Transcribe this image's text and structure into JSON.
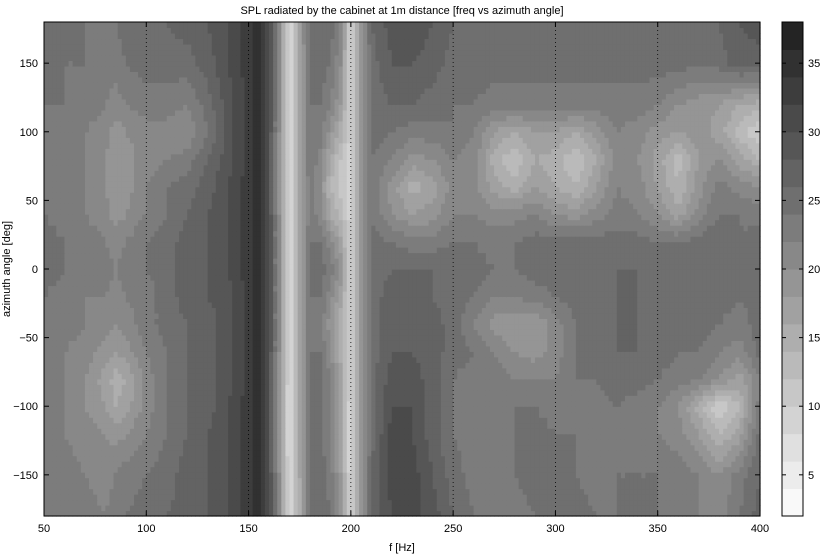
{
  "chart_data": {
    "type": "heatmap",
    "title": "SPL radiated by the cabinet at 1m distance [freq vs azimuth angle]",
    "xlabel": "f [Hz]",
    "ylabel": "azimuth angle [deg]",
    "xlim": [
      50,
      400
    ],
    "ylim": [
      -180,
      180
    ],
    "xticks": [
      "50",
      "100",
      "150",
      "200",
      "250",
      "300",
      "350",
      "400"
    ],
    "yticks": [
      "-150",
      "-100",
      "-50",
      "0",
      "50",
      "100",
      "150"
    ],
    "colorbar": {
      "range": [
        2,
        38
      ],
      "ticks": [
        "5",
        "10",
        "15",
        "20",
        "25",
        "30",
        "35"
      ],
      "levels": 18,
      "colormap": "gray"
    },
    "grid": "vertical dotted lines at x ticks",
    "x": [
      50,
      60,
      70,
      80,
      85,
      90,
      100,
      110,
      120,
      130,
      140,
      150,
      155,
      160,
      165,
      170,
      175,
      180,
      185,
      190,
      195,
      200,
      205,
      210,
      220,
      230,
      240,
      250,
      260,
      270,
      280,
      290,
      300,
      310,
      320,
      330,
      340,
      350,
      360,
      370,
      380,
      390,
      400
    ],
    "y": [
      -180,
      -150,
      -120,
      -100,
      -80,
      -60,
      -40,
      -20,
      0,
      20,
      40,
      60,
      80,
      100,
      120,
      150,
      180
    ],
    "z": [
      [
        24,
        24,
        23,
        22,
        23,
        24,
        25,
        26,
        27,
        28,
        30,
        33,
        35,
        30,
        20,
        8,
        15,
        24,
        26,
        24,
        18,
        8,
        18,
        26,
        30,
        31,
        29,
        26,
        24,
        23,
        23,
        24,
        25,
        25,
        24,
        24,
        25,
        24,
        24,
        22,
        21,
        24,
        27
      ],
      [
        24,
        23,
        22,
        21,
        22,
        23,
        24,
        25,
        27,
        28,
        30,
        33,
        35,
        30,
        20,
        8,
        16,
        24,
        25,
        23,
        18,
        8,
        18,
        26,
        31,
        31,
        28,
        25,
        23,
        23,
        24,
        25,
        25,
        24,
        23,
        24,
        24,
        24,
        23,
        22,
        20,
        23,
        26
      ],
      [
        23,
        22,
        21,
        20,
        19,
        20,
        22,
        24,
        26,
        28,
        30,
        33,
        35,
        30,
        19,
        7,
        16,
        24,
        25,
        22,
        17,
        8,
        18,
        25,
        31,
        30,
        27,
        24,
        23,
        23,
        24,
        25,
        24,
        24,
        23,
        23,
        23,
        22,
        21,
        18,
        14,
        17,
        25
      ],
      [
        23,
        22,
        20,
        18,
        16,
        17,
        21,
        24,
        26,
        27,
        30,
        33,
        35,
        30,
        19,
        7,
        16,
        24,
        25,
        22,
        17,
        8,
        18,
        25,
        30,
        30,
        27,
        24,
        23,
        23,
        24,
        24,
        23,
        23,
        23,
        24,
        23,
        22,
        20,
        15,
        10,
        14,
        23
      ],
      [
        23,
        22,
        20,
        17,
        15,
        16,
        21,
        24,
        26,
        27,
        29,
        33,
        35,
        30,
        19,
        8,
        17,
        24,
        25,
        22,
        17,
        9,
        18,
        25,
        29,
        29,
        27,
        24,
        23,
        23,
        22,
        22,
        22,
        24,
        24,
        25,
        25,
        24,
        23,
        22,
        20,
        17,
        22
      ],
      [
        23,
        22,
        21,
        19,
        18,
        19,
        22,
        24,
        26,
        27,
        29,
        33,
        35,
        30,
        20,
        8,
        17,
        24,
        24,
        20,
        15,
        9,
        18,
        25,
        28,
        28,
        27,
        25,
        24,
        22,
        20,
        19,
        21,
        24,
        25,
        26,
        26,
        25,
        24,
        24,
        22,
        21,
        25
      ],
      [
        24,
        23,
        22,
        21,
        20,
        21,
        23,
        25,
        26,
        27,
        29,
        33,
        35,
        30,
        20,
        8,
        17,
        24,
        23,
        19,
        14,
        9,
        18,
        25,
        27,
        27,
        27,
        25,
        22,
        19,
        18,
        18,
        21,
        24,
        25,
        26,
        26,
        25,
        25,
        25,
        24,
        23,
        25
      ],
      [
        24,
        23,
        22,
        22,
        21,
        22,
        23,
        25,
        27,
        28,
        29,
        33,
        35,
        30,
        20,
        8,
        17,
        24,
        24,
        21,
        17,
        9,
        18,
        25,
        27,
        27,
        26,
        25,
        24,
        22,
        22,
        23,
        24,
        25,
        25,
        26,
        26,
        25,
        25,
        25,
        25,
        24,
        25
      ],
      [
        25,
        24,
        23,
        23,
        22,
        23,
        24,
        25,
        27,
        28,
        30,
        33,
        35,
        30,
        20,
        8,
        17,
        24,
        25,
        23,
        19,
        9,
        18,
        25,
        26,
        26,
        26,
        25,
        25,
        24,
        24,
        25,
        25,
        25,
        25,
        26,
        26,
        25,
        25,
        26,
        26,
        25,
        26
      ],
      [
        25,
        24,
        23,
        22,
        21,
        22,
        24,
        25,
        27,
        28,
        30,
        33,
        35,
        30,
        20,
        8,
        17,
        24,
        24,
        21,
        17,
        9,
        18,
        25,
        24,
        23,
        23,
        24,
        24,
        23,
        24,
        25,
        25,
        25,
        25,
        25,
        25,
        24,
        24,
        25,
        26,
        24,
        25
      ],
      [
        24,
        23,
        22,
        21,
        19,
        20,
        22,
        24,
        26,
        28,
        30,
        33,
        35,
        30,
        20,
        8,
        16,
        23,
        21,
        16,
        13,
        9,
        18,
        24,
        20,
        18,
        19,
        22,
        22,
        21,
        21,
        22,
        20,
        19,
        21,
        23,
        22,
        20,
        17,
        21,
        24,
        24,
        23
      ],
      [
        24,
        23,
        22,
        20,
        18,
        19,
        22,
        24,
        25,
        27,
        30,
        33,
        35,
        30,
        19,
        8,
        16,
        23,
        20,
        14,
        11,
        9,
        18,
        24,
        19,
        15,
        17,
        21,
        21,
        17,
        15,
        18,
        16,
        14,
        18,
        22,
        21,
        18,
        14,
        19,
        23,
        21,
        20
      ],
      [
        24,
        23,
        22,
        20,
        18,
        19,
        21,
        22,
        23,
        26,
        29,
        33,
        35,
        30,
        19,
        8,
        17,
        24,
        21,
        16,
        12,
        9,
        18,
        24,
        22,
        19,
        20,
        22,
        21,
        15,
        12,
        16,
        15,
        12,
        16,
        21,
        20,
        17,
        13,
        18,
        20,
        17,
        14
      ],
      [
        24,
        23,
        22,
        21,
        19,
        20,
        21,
        21,
        20,
        24,
        29,
        33,
        35,
        30,
        20,
        8,
        17,
        24,
        23,
        19,
        15,
        9,
        18,
        25,
        24,
        23,
        23,
        24,
        22,
        18,
        16,
        18,
        18,
        16,
        19,
        22,
        21,
        19,
        18,
        19,
        17,
        13,
        10
      ],
      [
        24,
        24,
        23,
        22,
        21,
        22,
        23,
        23,
        22,
        25,
        29,
        33,
        35,
        30,
        20,
        8,
        17,
        24,
        24,
        22,
        18,
        9,
        18,
        25,
        26,
        26,
        25,
        24,
        24,
        23,
        23,
        23,
        23,
        23,
        23,
        23,
        23,
        22,
        20,
        19,
        18,
        16,
        15
      ],
      [
        25,
        24,
        24,
        23,
        23,
        24,
        25,
        25,
        25,
        27,
        30,
        33,
        35,
        30,
        20,
        8,
        17,
        24,
        25,
        24,
        20,
        9,
        18,
        25,
        28,
        28,
        27,
        25,
        25,
        25,
        25,
        25,
        25,
        25,
        25,
        25,
        25,
        25,
        25,
        24,
        25,
        27,
        27
      ],
      [
        26,
        25,
        24,
        24,
        24,
        25,
        26,
        26,
        27,
        28,
        30,
        33,
        35,
        30,
        20,
        8,
        17,
        25,
        26,
        25,
        22,
        9,
        18,
        26,
        29,
        30,
        28,
        26,
        25,
        25,
        25,
        25,
        25,
        25,
        25,
        25,
        26,
        26,
        26,
        25,
        26,
        28,
        29
      ]
    ]
  }
}
